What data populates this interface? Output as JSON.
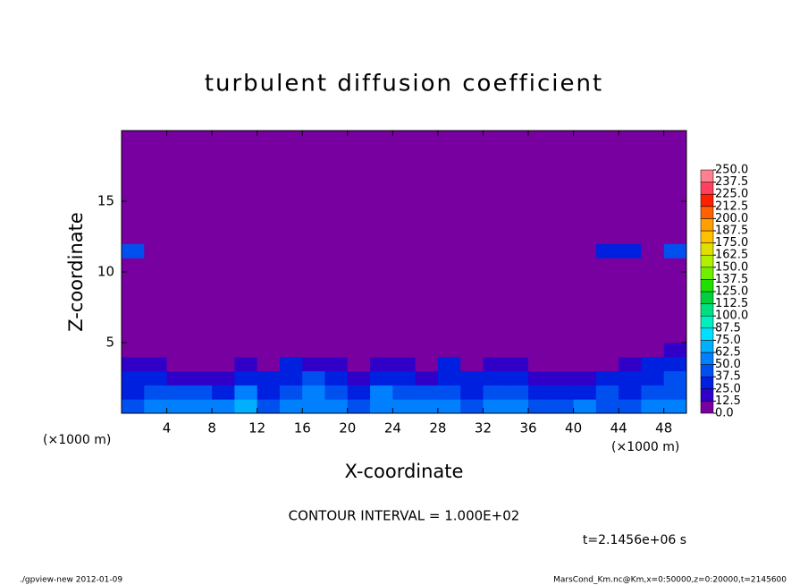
{
  "chart_data": {
    "type": "heatmap",
    "title": "turbulent diffusion coefficient",
    "x_label": "X-coordinate",
    "y_label": "Z-coordinate",
    "x_unit_label": "(×1000 m)",
    "y_unit_label": "(×1000 m)",
    "xlim": [
      0,
      50
    ],
    "ylim": [
      0,
      20
    ],
    "xticks": [
      4,
      8,
      12,
      16,
      20,
      24,
      28,
      32,
      36,
      40,
      44,
      48
    ],
    "yticks": [
      5,
      10,
      15
    ],
    "x_edges": [
      0,
      2,
      4,
      6,
      8,
      10,
      12,
      14,
      16,
      18,
      20,
      22,
      24,
      26,
      28,
      30,
      32,
      34,
      36,
      38,
      40,
      42,
      44,
      46,
      48,
      50
    ],
    "y_edges": [
      0,
      1,
      2,
      3,
      4,
      5,
      8,
      11,
      12,
      13,
      20
    ],
    "z": [
      [
        45,
        50,
        55,
        60,
        50,
        65,
        45,
        55,
        60,
        50,
        45,
        55,
        60,
        50,
        55,
        45,
        50,
        55,
        45,
        40,
        50,
        45,
        40,
        55,
        50
      ],
      [
        35,
        40,
        45,
        40,
        30,
        50,
        35,
        45,
        55,
        45,
        35,
        50,
        45,
        40,
        45,
        35,
        40,
        45,
        30,
        30,
        35,
        40,
        35,
        45,
        45
      ],
      [
        25,
        30,
        20,
        20,
        15,
        35,
        25,
        35,
        40,
        30,
        20,
        35,
        30,
        20,
        35,
        25,
        30,
        35,
        15,
        15,
        20,
        25,
        30,
        35,
        40
      ],
      [
        20,
        15,
        10,
        5,
        5,
        20,
        10,
        25,
        20,
        15,
        10,
        20,
        15,
        5,
        30,
        10,
        20,
        15,
        5,
        5,
        5,
        10,
        15,
        25,
        35
      ],
      [
        0,
        0,
        0,
        0,
        0,
        5,
        0,
        0,
        5,
        0,
        0,
        5,
        0,
        0,
        5,
        0,
        0,
        0,
        0,
        0,
        0,
        0,
        0,
        5,
        20
      ],
      [
        5,
        0,
        0,
        0,
        0,
        5,
        0,
        0,
        0,
        0,
        0,
        0,
        0,
        0,
        0,
        0,
        0,
        0,
        0,
        0,
        0,
        0,
        0,
        0,
        5
      ],
      [
        0,
        0,
        0,
        0,
        0,
        0,
        0,
        0,
        0,
        0,
        0,
        0,
        0,
        0,
        0,
        0,
        0,
        0,
        0,
        0,
        0,
        0,
        0,
        0,
        0
      ],
      [
        40,
        0,
        0,
        0,
        0,
        0,
        0,
        0,
        0,
        0,
        0,
        0,
        0,
        0,
        0,
        0,
        0,
        0,
        0,
        0,
        0,
        30,
        30,
        0,
        40
      ],
      [
        0,
        0,
        0,
        0,
        0,
        0,
        0,
        0,
        0,
        0,
        0,
        0,
        0,
        0,
        0,
        0,
        0,
        0,
        0,
        0,
        0,
        0,
        0,
        0,
        0
      ],
      [
        0,
        0,
        0,
        0,
        0,
        0,
        0,
        0,
        0,
        0,
        0,
        0,
        0,
        0,
        0,
        0,
        0,
        0,
        0,
        0,
        0,
        0,
        0,
        0,
        0
      ]
    ],
    "colorbar_ticks": [
      {
        "value": 0,
        "label": "0.0"
      },
      {
        "value": 12.5,
        "label": "12.5"
      },
      {
        "value": 25,
        "label": "25.0"
      },
      {
        "value": 37.5,
        "label": "37.5"
      },
      {
        "value": 50,
        "label": "50.0"
      },
      {
        "value": 62.5,
        "label": "62.5"
      },
      {
        "value": 75,
        "label": "75.0"
      },
      {
        "value": 87.5,
        "label": "87.5"
      },
      {
        "value": 100,
        "label": "100.0"
      },
      {
        "value": 112.5,
        "label": "112.5"
      },
      {
        "value": 125,
        "label": "125.0"
      },
      {
        "value": 137.5,
        "label": "137.5"
      },
      {
        "value": 150,
        "label": "150.0"
      },
      {
        "value": 162.5,
        "label": "162.5"
      },
      {
        "value": 175,
        "label": "175.0"
      },
      {
        "value": 187.5,
        "label": "187.5"
      },
      {
        "value": 200,
        "label": "200.0"
      },
      {
        "value": 212.5,
        "label": "212.5"
      },
      {
        "value": 225,
        "label": "225.0"
      },
      {
        "value": 237.5,
        "label": "237.5"
      },
      {
        "value": 250,
        "label": "250.0"
      }
    ],
    "colors": [
      "#7800a0",
      "#3000c8",
      "#0020e0",
      "#0050f0",
      "#0080ff",
      "#00b0ff",
      "#00e0ff",
      "#00f0c0",
      "#00e080",
      "#00d040",
      "#20e000",
      "#70f000",
      "#b0f000",
      "#e0e000",
      "#ffc000",
      "#ffa000",
      "#ff6000",
      "#ff2000",
      "#ff4060",
      "#ff8090"
    ],
    "contour_interval_label": "CONTOUR INTERVAL = 1.000E+02",
    "time_label": "t=2.1456e+06 s",
    "footer_left": "./gpview-new  2012-01-09",
    "footer_right": "MarsCond_Km.nc@Km,x=0:50000,z=0:20000,t=2145600"
  }
}
